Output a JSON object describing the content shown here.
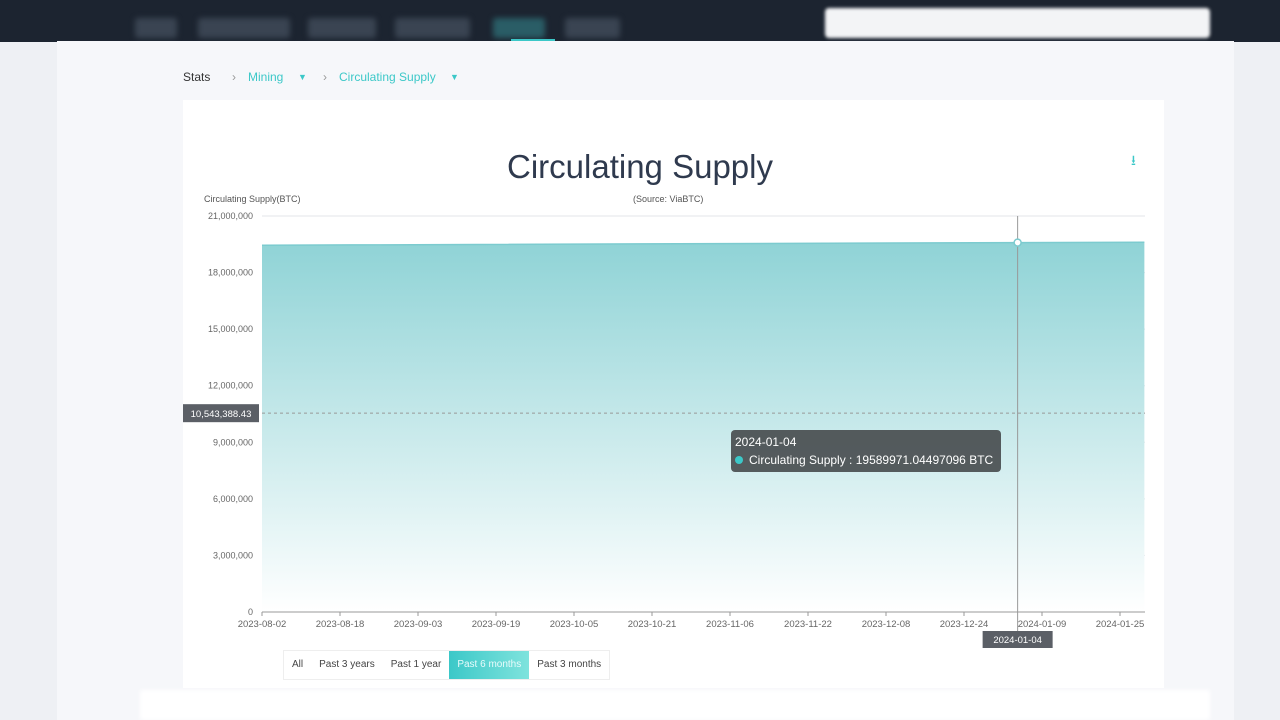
{
  "breadcrumb": {
    "root": "Stats",
    "level1": "Mining",
    "level2": "Circulating Supply"
  },
  "colors": {
    "accent": "#3cc8c8",
    "area_top": "#8fd3d6",
    "area_bottom": "#ffffff"
  },
  "icons": {
    "download": "download-icon",
    "dropdown": "caret-down-icon",
    "separator": "chevron-right-icon"
  },
  "range_buttons": [
    {
      "label": "All"
    },
    {
      "label": "Past 3 years"
    },
    {
      "label": "Past 1 year"
    },
    {
      "label": "Past 6 months",
      "active": true
    },
    {
      "label": "Past 3 months"
    }
  ],
  "tooltip": {
    "date": "2024-01-04",
    "series": "Circulating Supply",
    "value": "19589971.04497096",
    "unit": "BTC"
  },
  "crosshair": {
    "y_label": "10,543,388.43",
    "x_label": "2024-01-04"
  },
  "chart_data": {
    "type": "area",
    "title": "Circulating Supply",
    "subtitle": "(Source: ViaBTC)",
    "ylabel": "Circulating Supply(BTC)",
    "xlabel": "",
    "ylim": [
      0,
      21000000
    ],
    "yticks": [
      "0",
      "3,000,000",
      "6,000,000",
      "9,000,000",
      "12,000,000",
      "15,000,000",
      "18,000,000",
      "21,000,000"
    ],
    "xticks": [
      "2023-08-02",
      "2023-08-18",
      "2023-09-03",
      "2023-09-19",
      "2023-10-05",
      "2023-10-21",
      "2023-11-06",
      "2023-11-22",
      "2023-12-08",
      "2023-12-24",
      "2024-01-09",
      "2024-01-25"
    ],
    "grid": true,
    "series": [
      {
        "name": "Circulating Supply",
        "x": [
          "2023-08-02",
          "2024-01-04",
          "2024-01-30"
        ],
        "y": [
          19450000,
          19589971.04,
          19605000
        ]
      }
    ]
  }
}
